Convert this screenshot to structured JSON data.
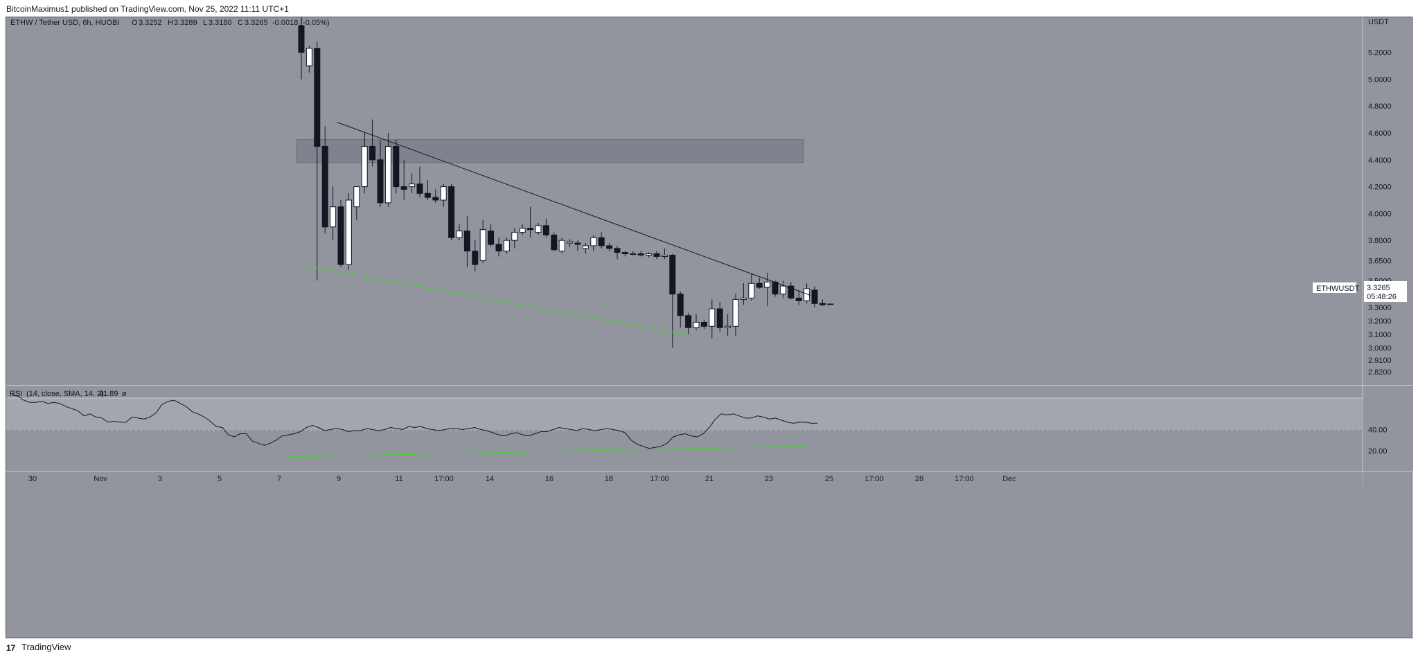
{
  "header": {
    "publisher_text": "BitcoinMaximus1 published on TradingView.com, Nov 25, 2022 11:11 UTC+1"
  },
  "footer": {
    "logo_glyph": "17",
    "brand": "TradingView"
  },
  "colors": {
    "panel_bg": "#92959e",
    "rsi_band": "#a3a6ae",
    "candle_up": "#ffffff",
    "candle_down": "#131722",
    "trendline": "#131722",
    "support_line": "#49c93b",
    "zone": "#7d8089"
  },
  "chart_data": [
    {
      "type": "candlestick",
      "symbol": "ETHW / Tether USD, 6h, HUOBI",
      "ohlc_text": {
        "o_label": "O",
        "o": "3.3252",
        "h_label": "H",
        "h": "3.3289",
        "l_label": "L",
        "l": "3.3180",
        "c_label": "C",
        "c": "3.3265",
        "change": "-0.0018 (-0.05%)"
      },
      "currency": "USDT",
      "y_ticks": [
        "5.2000",
        "5.0000",
        "4.8000",
        "4.6000",
        "4.4000",
        "4.2000",
        "4.0000",
        "3.8000",
        "3.6500",
        "3.5000",
        "3.4000",
        "3.3000",
        "3.2000",
        "3.1000",
        "3.0000",
        "2.9100",
        "2.8200"
      ],
      "ylim": [
        2.78,
        5.42
      ],
      "x_ticks": [
        "30",
        "Nov",
        "3",
        "5",
        "7",
        "9",
        "11",
        "17:00",
        "14",
        "16",
        "18",
        "17:00",
        "21",
        "23",
        "25",
        "17:00",
        "28",
        "17:00",
        "Dec"
      ],
      "price_label": {
        "symbol": "ETHWUSDT",
        "price": "3.3265",
        "countdown": "05:48:26"
      },
      "zone": {
        "from_candle": 0,
        "to_candle": 63,
        "low": 4.38,
        "high": 4.55
      },
      "resistance_line": {
        "from": [
          4.5,
          4.68
        ],
        "to": [
          64.5,
          3.39
        ]
      },
      "support_line": {
        "from": [
          0.5,
          3.61
        ],
        "to": [
          49.5,
          3.09
        ]
      },
      "candles": [
        {
          "o": 5.4,
          "h": 5.5,
          "l": 5.0,
          "c": 5.2
        },
        {
          "o": 5.1,
          "h": 5.25,
          "l": 5.05,
          "c": 5.23
        },
        {
          "o": 5.23,
          "h": 5.28,
          "l": 3.5,
          "c": 4.5
        },
        {
          "o": 4.5,
          "h": 4.65,
          "l": 3.85,
          "c": 3.9
        },
        {
          "o": 3.9,
          "h": 4.2,
          "l": 3.8,
          "c": 4.05
        },
        {
          "o": 4.05,
          "h": 4.1,
          "l": 3.6,
          "c": 3.62
        },
        {
          "o": 3.62,
          "h": 4.15,
          "l": 3.58,
          "c": 4.1
        },
        {
          "o": 4.05,
          "h": 4.2,
          "l": 3.95,
          "c": 4.2
        },
        {
          "o": 4.2,
          "h": 4.6,
          "l": 4.15,
          "c": 4.5
        },
        {
          "o": 4.5,
          "h": 4.7,
          "l": 4.35,
          "c": 4.4
        },
        {
          "o": 4.4,
          "h": 4.55,
          "l": 4.05,
          "c": 4.08
        },
        {
          "o": 4.08,
          "h": 4.6,
          "l": 4.05,
          "c": 4.5
        },
        {
          "o": 4.5,
          "h": 4.55,
          "l": 4.15,
          "c": 4.2
        },
        {
          "o": 4.2,
          "h": 4.4,
          "l": 4.1,
          "c": 4.18
        },
        {
          "o": 4.2,
          "h": 4.3,
          "l": 4.15,
          "c": 4.22
        },
        {
          "o": 4.22,
          "h": 4.35,
          "l": 4.12,
          "c": 4.15
        },
        {
          "o": 4.15,
          "h": 4.25,
          "l": 4.1,
          "c": 4.12
        },
        {
          "o": 4.12,
          "h": 4.18,
          "l": 4.08,
          "c": 4.1
        },
        {
          "o": 4.1,
          "h": 4.22,
          "l": 4.05,
          "c": 4.2
        },
        {
          "o": 4.2,
          "h": 4.22,
          "l": 3.8,
          "c": 3.82
        },
        {
          "o": 3.82,
          "h": 3.92,
          "l": 3.8,
          "c": 3.87
        },
        {
          "o": 3.87,
          "h": 3.98,
          "l": 3.6,
          "c": 3.72
        },
        {
          "o": 3.72,
          "h": 3.8,
          "l": 3.57,
          "c": 3.62
        },
        {
          "o": 3.65,
          "h": 3.95,
          "l": 3.63,
          "c": 3.88
        },
        {
          "o": 3.87,
          "h": 3.92,
          "l": 3.75,
          "c": 3.77
        },
        {
          "o": 3.77,
          "h": 3.82,
          "l": 3.68,
          "c": 3.72
        },
        {
          "o": 3.72,
          "h": 3.82,
          "l": 3.7,
          "c": 3.8
        },
        {
          "o": 3.8,
          "h": 3.89,
          "l": 3.74,
          "c": 3.86
        },
        {
          "o": 3.86,
          "h": 3.92,
          "l": 3.84,
          "c": 3.89
        },
        {
          "o": 3.89,
          "h": 4.05,
          "l": 3.82,
          "c": 3.88
        },
        {
          "o": 3.86,
          "h": 3.93,
          "l": 3.84,
          "c": 3.91
        },
        {
          "o": 3.91,
          "h": 3.96,
          "l": 3.82,
          "c": 3.84
        },
        {
          "o": 3.84,
          "h": 3.86,
          "l": 3.72,
          "c": 3.73
        },
        {
          "o": 3.72,
          "h": 3.82,
          "l": 3.7,
          "c": 3.8
        },
        {
          "o": 3.78,
          "h": 3.81,
          "l": 3.75,
          "c": 3.79
        },
        {
          "o": 3.78,
          "h": 3.8,
          "l": 3.72,
          "c": 3.77
        },
        {
          "o": 3.74,
          "h": 3.78,
          "l": 3.7,
          "c": 3.76
        },
        {
          "o": 3.76,
          "h": 3.84,
          "l": 3.72,
          "c": 3.82
        },
        {
          "o": 3.82,
          "h": 3.86,
          "l": 3.74,
          "c": 3.76
        },
        {
          "o": 3.76,
          "h": 3.78,
          "l": 3.72,
          "c": 3.74
        },
        {
          "o": 3.74,
          "h": 3.76,
          "l": 3.66,
          "c": 3.71
        },
        {
          "o": 3.71,
          "h": 3.72,
          "l": 3.68,
          "c": 3.7
        },
        {
          "o": 3.7,
          "h": 3.72,
          "l": 3.69,
          "c": 3.7
        },
        {
          "o": 3.7,
          "h": 3.72,
          "l": 3.68,
          "c": 3.69
        },
        {
          "o": 3.69,
          "h": 3.71,
          "l": 3.67,
          "c": 3.7
        },
        {
          "o": 3.7,
          "h": 3.72,
          "l": 3.66,
          "c": 3.68
        },
        {
          "o": 3.68,
          "h": 3.74,
          "l": 3.66,
          "c": 3.69
        },
        {
          "o": 3.69,
          "h": 3.7,
          "l": 3.0,
          "c": 3.4
        },
        {
          "o": 3.4,
          "h": 3.42,
          "l": 3.15,
          "c": 3.24
        },
        {
          "o": 3.24,
          "h": 3.26,
          "l": 3.1,
          "c": 3.15
        },
        {
          "o": 3.15,
          "h": 3.25,
          "l": 3.13,
          "c": 3.19
        },
        {
          "o": 3.19,
          "h": 3.21,
          "l": 3.14,
          "c": 3.16
        },
        {
          "o": 3.16,
          "h": 3.36,
          "l": 3.07,
          "c": 3.29
        },
        {
          "o": 3.29,
          "h": 3.34,
          "l": 3.12,
          "c": 3.15
        },
        {
          "o": 3.15,
          "h": 3.25,
          "l": 3.09,
          "c": 3.16
        },
        {
          "o": 3.16,
          "h": 3.4,
          "l": 3.09,
          "c": 3.36
        },
        {
          "o": 3.36,
          "h": 3.48,
          "l": 3.32,
          "c": 3.37
        },
        {
          "o": 3.37,
          "h": 3.55,
          "l": 3.35,
          "c": 3.48
        },
        {
          "o": 3.48,
          "h": 3.52,
          "l": 3.44,
          "c": 3.45
        },
        {
          "o": 3.45,
          "h": 3.56,
          "l": 3.31,
          "c": 3.49
        },
        {
          "o": 3.49,
          "h": 3.5,
          "l": 3.38,
          "c": 3.4
        },
        {
          "o": 3.4,
          "h": 3.5,
          "l": 3.37,
          "c": 3.46
        },
        {
          "o": 3.46,
          "h": 3.49,
          "l": 3.36,
          "c": 3.37
        },
        {
          "o": 3.37,
          "h": 3.43,
          "l": 3.32,
          "c": 3.35
        },
        {
          "o": 3.35,
          "h": 3.48,
          "l": 3.33,
          "c": 3.44
        },
        {
          "o": 3.43,
          "h": 3.46,
          "l": 3.3,
          "c": 3.33
        },
        {
          "o": 3.33,
          "h": 3.36,
          "l": 3.31,
          "c": 3.32
        },
        {
          "o": 3.3252,
          "h": 3.3289,
          "l": 3.318,
          "c": 3.3265
        }
      ]
    },
    {
      "type": "line",
      "label": "RSI",
      "params": "(14, close, SMA, 14, 2)",
      "value": "41.89",
      "extra": "ø",
      "y_ticks": [
        "40.00",
        "20.00"
      ],
      "ylim": [
        0,
        80
      ],
      "band": [
        30,
        70
      ],
      "values": [
        73,
        72,
        68,
        66,
        66,
        67,
        65,
        66,
        65,
        62,
        60,
        58,
        53,
        55,
        52,
        51,
        47,
        48,
        47,
        47,
        52,
        51,
        50,
        52,
        56,
        64,
        67,
        68,
        65,
        62,
        57,
        55,
        52,
        48,
        43,
        42,
        35,
        33,
        36,
        36,
        29,
        27,
        25,
        27,
        30,
        34,
        35,
        36,
        38,
        42,
        44,
        42,
        39,
        40,
        41,
        40,
        38,
        39,
        39,
        41,
        40,
        39,
        40,
        42,
        41,
        40,
        43,
        42,
        43,
        41,
        40,
        39,
        40,
        41,
        41,
        40,
        41,
        42,
        40,
        39,
        37,
        35,
        34,
        36,
        37,
        35,
        34,
        36,
        38,
        38,
        40,
        42,
        41,
        40,
        39,
        41,
        40,
        39,
        40,
        41,
        40,
        39,
        37,
        30,
        26,
        24,
        22,
        23,
        24,
        27,
        33,
        35,
        36,
        34,
        33,
        36,
        42,
        50,
        55,
        54,
        55,
        53,
        51,
        51,
        53,
        52,
        50,
        51,
        49,
        47,
        46,
        47,
        47,
        46,
        46
      ],
      "divergence_line": {
        "from": [
          46,
          14
        ],
        "to": [
          132,
          24
        ]
      }
    }
  ]
}
